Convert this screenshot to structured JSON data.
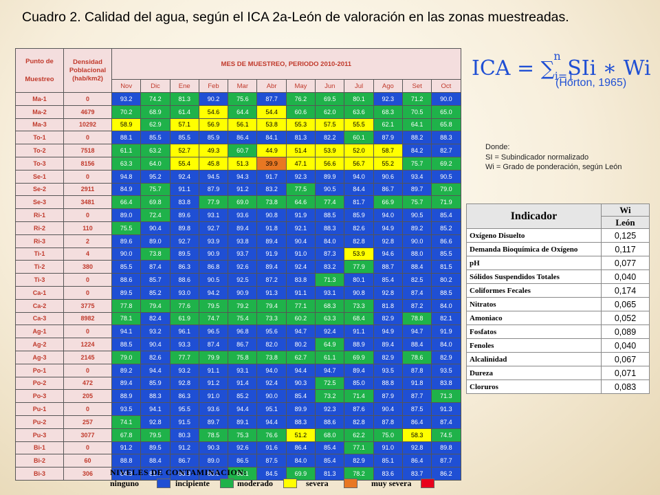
{
  "title": "Cuadro 2. Calidad del agua, según el ICA 2a-León de valoración en las zonas muestreadas.",
  "table": {
    "punto_header": [
      "Punto de",
      "Muestreo"
    ],
    "densidad_header": [
      "Densidad",
      "Poblacional",
      "(hab/km2)"
    ],
    "period_header": "MES DE MUESTREO, PERIODO 2010-2011",
    "months": [
      "Nov",
      "Dic",
      "Ene",
      "Feb",
      "Mar",
      "Abr",
      "May",
      "Jun",
      "Jul",
      "Ago",
      "Set",
      "Oct"
    ],
    "rows": [
      {
        "site": "Ma-1",
        "dens": "0",
        "vals": [
          "93.2",
          "74.2",
          "81.3",
          "90.2",
          "75.6",
          "87.7",
          "76.2",
          "69.5",
          "80.1",
          "92.3",
          "71.2",
          "90.0"
        ],
        "cls": [
          0,
          1,
          1,
          0,
          1,
          0,
          1,
          1,
          1,
          0,
          1,
          0
        ]
      },
      {
        "site": "Ma-2",
        "dens": "4679",
        "vals": [
          "70.2",
          "68.9",
          "61.4",
          "54.6",
          "64.4",
          "54.4",
          "60.6",
          "62.0",
          "63.6",
          "68.3",
          "70.5",
          "65.0"
        ],
        "cls": [
          1,
          1,
          1,
          2,
          1,
          2,
          1,
          1,
          1,
          1,
          1,
          1
        ]
      },
      {
        "site": "Ma-3",
        "dens": "10292",
        "vals": [
          "58.9",
          "62.9",
          "57.1",
          "56.9",
          "56.1",
          "53.8",
          "55.3",
          "57.5",
          "55.5",
          "62.1",
          "64.1",
          "65.8"
        ],
        "cls": [
          2,
          1,
          2,
          2,
          2,
          2,
          2,
          2,
          2,
          1,
          1,
          1
        ]
      },
      {
        "site": "To-1",
        "dens": "0",
        "vals": [
          "88.1",
          "85.5",
          "85.5",
          "85.9",
          "86.4",
          "84.1",
          "81.3",
          "82.2",
          "60.1",
          "87.9",
          "88.2",
          "88.3"
        ],
        "cls": [
          0,
          0,
          0,
          0,
          0,
          0,
          0,
          0,
          1,
          0,
          0,
          0
        ]
      },
      {
        "site": "To-2",
        "dens": "7518",
        "vals": [
          "61.1",
          "63.2",
          "52.7",
          "49.3",
          "60.7",
          "44.9",
          "51.4",
          "53.9",
          "52.0",
          "58.7",
          "84.2",
          "82.7"
        ],
        "cls": [
          1,
          1,
          2,
          2,
          1,
          2,
          2,
          2,
          2,
          2,
          0,
          0
        ]
      },
      {
        "site": "To-3",
        "dens": "8156",
        "vals": [
          "63.3",
          "64.0",
          "55.4",
          "45.8",
          "51.3",
          "39.9",
          "47.1",
          "56.6",
          "56.7",
          "55.2",
          "75.7",
          "69.2"
        ],
        "cls": [
          1,
          1,
          2,
          2,
          2,
          3,
          2,
          2,
          2,
          2,
          1,
          1
        ]
      },
      {
        "site": "Se-1",
        "dens": "0",
        "vals": [
          "94.8",
          "95.2",
          "92.4",
          "94.5",
          "94.3",
          "91.7",
          "92.3",
          "89.9",
          "94.0",
          "90.6",
          "93.4",
          "90.5"
        ],
        "cls": [
          0,
          0,
          0,
          0,
          0,
          0,
          0,
          0,
          0,
          0,
          0,
          0
        ]
      },
      {
        "site": "Se-2",
        "dens": "2911",
        "vals": [
          "84.9",
          "75.7",
          "91.1",
          "87.9",
          "91.2",
          "83.2",
          "77.5",
          "90.5",
          "84.4",
          "86.7",
          "89.7",
          "79.0"
        ],
        "cls": [
          0,
          1,
          0,
          0,
          0,
          0,
          1,
          0,
          0,
          0,
          0,
          1
        ]
      },
      {
        "site": "Se-3",
        "dens": "3481",
        "vals": [
          "66.4",
          "69.8",
          "83.8",
          "77.9",
          "69.0",
          "73.8",
          "64.6",
          "77.4",
          "81.7",
          "66.9",
          "75.7",
          "71.9"
        ],
        "cls": [
          1,
          1,
          0,
          1,
          1,
          1,
          1,
          1,
          0,
          1,
          1,
          1
        ]
      },
      {
        "site": "Ri-1",
        "dens": "0",
        "vals": [
          "89.0",
          "72.4",
          "89.6",
          "93.1",
          "93.6",
          "90.8",
          "91.9",
          "88.5",
          "85.9",
          "94.0",
          "90.5",
          "85.4"
        ],
        "cls": [
          0,
          1,
          0,
          0,
          0,
          0,
          0,
          0,
          0,
          0,
          0,
          0
        ]
      },
      {
        "site": "Ri-2",
        "dens": "110",
        "vals": [
          "75.5",
          "90.4",
          "89.8",
          "92.7",
          "89.4",
          "91.8",
          "92.1",
          "88.3",
          "82.6",
          "94.9",
          "89.2",
          "85.2"
        ],
        "cls": [
          1,
          0,
          0,
          0,
          0,
          0,
          0,
          0,
          0,
          0,
          0,
          0
        ]
      },
      {
        "site": "Ri-3",
        "dens": "2",
        "vals": [
          "89.6",
          "89.0",
          "92.7",
          "93.9",
          "93.8",
          "89.4",
          "90.4",
          "84.0",
          "82.8",
          "92.8",
          "90.0",
          "86.6"
        ],
        "cls": [
          0,
          0,
          0,
          0,
          0,
          0,
          0,
          0,
          0,
          0,
          0,
          0
        ]
      },
      {
        "site": "Ti-1",
        "dens": "4",
        "vals": [
          "90.0",
          "73.8",
          "89.5",
          "90.9",
          "93.7",
          "91.9",
          "91.0",
          "87.3",
          "53.9",
          "94.6",
          "88.0",
          "85.5"
        ],
        "cls": [
          0,
          1,
          0,
          0,
          0,
          0,
          0,
          0,
          2,
          0,
          0,
          0
        ]
      },
      {
        "site": "Ti-2",
        "dens": "380",
        "vals": [
          "85.5",
          "87.4",
          "86.3",
          "86.8",
          "92.6",
          "89.4",
          "92.4",
          "83.2",
          "77.9",
          "88.7",
          "88.4",
          "81.5"
        ],
        "cls": [
          0,
          0,
          0,
          0,
          0,
          0,
          0,
          0,
          1,
          0,
          0,
          0
        ]
      },
      {
        "site": "Ti-3",
        "dens": "0",
        "vals": [
          "88.6",
          "85.7",
          "88.6",
          "90.5",
          "92.5",
          "87.2",
          "83.8",
          "71.3",
          "80.1",
          "85.4",
          "82.5",
          "80.2"
        ],
        "cls": [
          0,
          0,
          0,
          0,
          0,
          0,
          0,
          1,
          0,
          0,
          0,
          0
        ]
      },
      {
        "site": "Ca-1",
        "dens": "0",
        "vals": [
          "89.5",
          "85.2",
          "93.0",
          "94.2",
          "90.9",
          "91.3",
          "91.1",
          "93.1",
          "90.8",
          "92.8",
          "87.4",
          "88.5"
        ],
        "cls": [
          0,
          0,
          0,
          0,
          0,
          0,
          0,
          0,
          0,
          0,
          0,
          0
        ]
      },
      {
        "site": "Ca-2",
        "dens": "3775",
        "vals": [
          "77.8",
          "79.4",
          "77.6",
          "79.5",
          "79.2",
          "79.4",
          "77.1",
          "68.3",
          "73.3",
          "81.8",
          "87.2",
          "84.0"
        ],
        "cls": [
          1,
          1,
          1,
          1,
          1,
          1,
          1,
          1,
          1,
          0,
          0,
          0
        ]
      },
      {
        "site": "Ca-3",
        "dens": "8982",
        "vals": [
          "78.1",
          "82.4",
          "61.9",
          "74.7",
          "75.4",
          "73.3",
          "60.2",
          "63.3",
          "68.4",
          "82.9",
          "78.8",
          "82.1"
        ],
        "cls": [
          1,
          0,
          1,
          1,
          1,
          1,
          1,
          1,
          1,
          0,
          1,
          0
        ]
      },
      {
        "site": "Ag-1",
        "dens": "0",
        "vals": [
          "94.1",
          "93.2",
          "96.1",
          "96.5",
          "96.8",
          "95.6",
          "94.7",
          "92.4",
          "91.1",
          "94.9",
          "94.7",
          "91.9"
        ],
        "cls": [
          0,
          0,
          0,
          0,
          0,
          0,
          0,
          0,
          0,
          0,
          0,
          0
        ]
      },
      {
        "site": "Ag-2",
        "dens": "1224",
        "vals": [
          "88.5",
          "90.4",
          "93.3",
          "87.4",
          "86.7",
          "82.0",
          "80.2",
          "64.9",
          "88.9",
          "89.4",
          "88.4",
          "84.0"
        ],
        "cls": [
          0,
          0,
          0,
          0,
          0,
          0,
          0,
          1,
          0,
          0,
          0,
          0
        ]
      },
      {
        "site": "Ag-3",
        "dens": "2145",
        "vals": [
          "79.0",
          "82.6",
          "77.7",
          "79.9",
          "75.8",
          "73.8",
          "62.7",
          "61.1",
          "69.9",
          "82.9",
          "78.6",
          "82.9"
        ],
        "cls": [
          1,
          0,
          1,
          1,
          1,
          1,
          1,
          1,
          1,
          0,
          1,
          0
        ]
      },
      {
        "site": "Po-1",
        "dens": "0",
        "vals": [
          "89.2",
          "94.4",
          "93.2",
          "91.1",
          "93.1",
          "94.0",
          "94.4",
          "94.7",
          "89.4",
          "93.5",
          "87.8",
          "93.5"
        ],
        "cls": [
          0,
          0,
          0,
          0,
          0,
          0,
          0,
          0,
          0,
          0,
          0,
          0
        ]
      },
      {
        "site": "Po-2",
        "dens": "472",
        "vals": [
          "89.4",
          "85.9",
          "92.8",
          "91.2",
          "91.4",
          "92.4",
          "90.3",
          "72.5",
          "85.0",
          "88.8",
          "91.8",
          "83.8"
        ],
        "cls": [
          0,
          0,
          0,
          0,
          0,
          0,
          0,
          1,
          0,
          0,
          0,
          0
        ]
      },
      {
        "site": "Po-3",
        "dens": "205",
        "vals": [
          "88.9",
          "88.3",
          "86.3",
          "91.0",
          "85.2",
          "90.0",
          "85.4",
          "73.2",
          "71.4",
          "87.9",
          "87.7",
          "71.3"
        ],
        "cls": [
          0,
          0,
          0,
          0,
          0,
          0,
          0,
          1,
          1,
          0,
          0,
          1
        ]
      },
      {
        "site": "Pu-1",
        "dens": "0",
        "vals": [
          "93.5",
          "94.1",
          "95.5",
          "93.6",
          "94.4",
          "95.1",
          "89.9",
          "92.3",
          "87.6",
          "90.4",
          "87.5",
          "91.3"
        ],
        "cls": [
          0,
          0,
          0,
          0,
          0,
          0,
          0,
          0,
          0,
          0,
          0,
          0
        ]
      },
      {
        "site": "Pu-2",
        "dens": "257",
        "vals": [
          "74.1",
          "92.8",
          "91.5",
          "89.7",
          "89.1",
          "94.4",
          "88.3",
          "88.6",
          "82.8",
          "87.8",
          "86.4",
          "87.4"
        ],
        "cls": [
          1,
          0,
          0,
          0,
          0,
          0,
          0,
          0,
          0,
          0,
          0,
          0
        ]
      },
      {
        "site": "Pu-3",
        "dens": "3077",
        "vals": [
          "67.8",
          "79.5",
          "80.3",
          "78.5",
          "75.3",
          "76.6",
          "51.2",
          "68.0",
          "62.2",
          "75.0",
          "58.3",
          "74.5"
        ],
        "cls": [
          1,
          1,
          0,
          1,
          1,
          1,
          2,
          1,
          1,
          1,
          2,
          1
        ]
      },
      {
        "site": "Bi-1",
        "dens": "0",
        "vals": [
          "91.2",
          "89.5",
          "91.2",
          "90.3",
          "92.6",
          "91.6",
          "86.4",
          "85.4",
          "77.1",
          "91.0",
          "92.8",
          "89.8"
        ],
        "cls": [
          0,
          0,
          0,
          0,
          0,
          0,
          0,
          0,
          1,
          0,
          0,
          0
        ]
      },
      {
        "site": "Bi-2",
        "dens": "60",
        "vals": [
          "88.8",
          "88.4",
          "86.7",
          "89.0",
          "86.5",
          "87.5",
          "84.0",
          "85.4",
          "82.9",
          "85.1",
          "86.4",
          "87.7"
        ],
        "cls": [
          0,
          0,
          0,
          0,
          0,
          0,
          0,
          0,
          0,
          0,
          0,
          0
        ]
      },
      {
        "site": "Bi-3",
        "dens": "306",
        "vals": [
          "84.3",
          "81.7",
          "86.8",
          "85.5",
          "68.1",
          "84.5",
          "69.9",
          "81.3",
          "78.2",
          "83.6",
          "83.7",
          "86.2"
        ],
        "cls": [
          0,
          0,
          0,
          0,
          1,
          0,
          1,
          0,
          1,
          0,
          0,
          0
        ]
      }
    ]
  },
  "colors": {
    "ninguno": "#1f4fd4",
    "incipiente": "#1fb24a",
    "moderado": "#ffff00",
    "severa": "#e87722",
    "muy_severa": "#e8001c",
    "formula": "#1f4fd4",
    "header_text": "#c0392b"
  },
  "formula": {
    "lhs": "ICA = ",
    "sum": "∑",
    "sub": "i=1",
    "sup": "n",
    "rhs": " SIi ∗ Wi"
  },
  "horton": "(Horton, 1965)",
  "note": {
    "l1": "Donde:",
    "l2": "SI = Subindicador normalizado",
    "l3": "Wi = Grado de ponderación, según León"
  },
  "weights": {
    "indicador": "Indicador",
    "wi": "Wi",
    "leon": "León",
    "rows": [
      {
        "name": "Oxígeno Disuelto",
        "value": "0,125"
      },
      {
        "name": "Demanda Bioquímica de Oxígeno",
        "value": "0,117"
      },
      {
        "name": "pH",
        "value": "0,077"
      },
      {
        "name": "Sólidos Suspendidos Totales",
        "value": "0,040"
      },
      {
        "name": "Coliformes Fecales",
        "value": "0,174"
      },
      {
        "name": "Nitratos",
        "value": "0,065"
      },
      {
        "name": "Amoniaco",
        "value": "0,052"
      },
      {
        "name": "Fosfatos",
        "value": "0,089"
      },
      {
        "name": "Fenoles",
        "value": "0,040"
      },
      {
        "name": "Alcalinidad",
        "value": "0,067"
      },
      {
        "name": "Dureza",
        "value": "0,071"
      },
      {
        "name": "Cloruros",
        "value": "0,083"
      }
    ]
  },
  "legend": {
    "title": "NIVELES DE CONTAMINACION:",
    "ninguno": "ninguno",
    "incipiente": "incipiente",
    "moderado": "moderado",
    "severa": "severa",
    "muy_severa": "muy severa"
  }
}
